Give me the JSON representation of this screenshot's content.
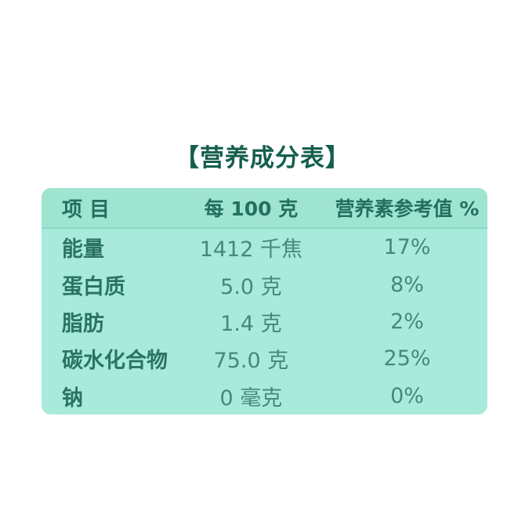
{
  "page": {
    "background_color": "#ffffff"
  },
  "title": {
    "text": "【营养成分表】",
    "color": "#145e4c"
  },
  "table": {
    "background_color": "#a9ebdb",
    "header_background_color": "#9fe4d1",
    "divider_color": "#8bd8c3",
    "label_color": "#2b7465",
    "value_color": "#46897a",
    "headers": [
      "项 目",
      "每 100 克",
      "营养素参考值 %"
    ],
    "rows": [
      {
        "item": "能量",
        "per_100g": "1412 千焦",
        "nrv": "17%"
      },
      {
        "item": "蛋白质",
        "per_100g": "5.0 克",
        "nrv": "8%"
      },
      {
        "item": "脂肪",
        "per_100g": "1.4 克",
        "nrv": "2%"
      },
      {
        "item": "碳水化合物",
        "per_100g": "75.0 克",
        "nrv": "25%"
      },
      {
        "item": "钠",
        "per_100g": "0 毫克",
        "nrv": "0%"
      }
    ]
  }
}
